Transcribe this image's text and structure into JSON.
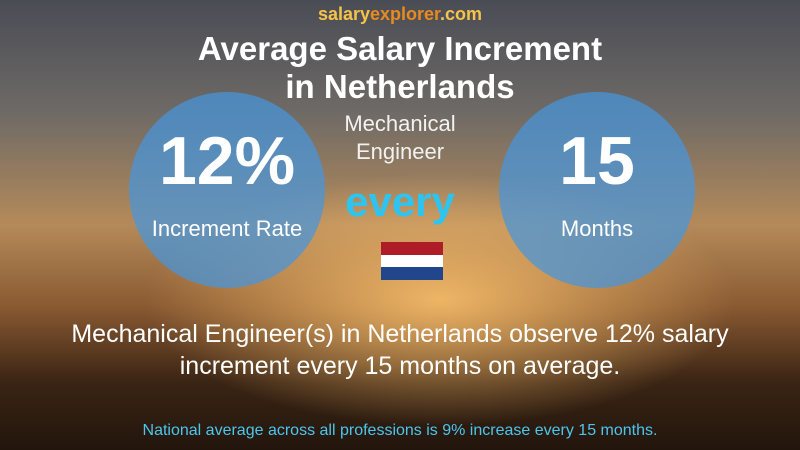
{
  "logo": {
    "part1": "salary",
    "part2": "explorer",
    "part3": ".com"
  },
  "title": {
    "line1": "Average Salary Increment",
    "line2": "in Netherlands"
  },
  "job_title": {
    "line1": "Mechanical",
    "line2": "Engineer"
  },
  "left_circle": {
    "value": "12%",
    "label": "Increment Rate"
  },
  "connector": "every",
  "right_circle": {
    "value": "15",
    "label": "Months"
  },
  "summary": {
    "line1": "Mechanical Engineer(s) in Netherlands observe 12% salary",
    "line2": "increment every 15 months on average."
  },
  "footer": "National average across all professions is 9% increase every 15 months."
}
